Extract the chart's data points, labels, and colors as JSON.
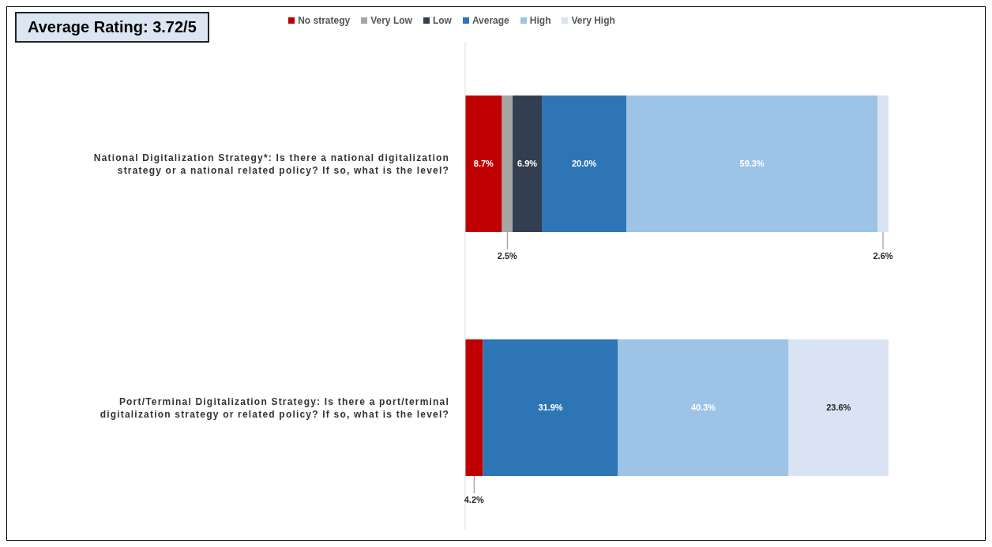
{
  "chart_data": {
    "type": "bar",
    "orientation": "horizontal",
    "stacked": true,
    "title": "Average Rating: 3.72/5",
    "categories": [
      "National Digitalization Strategy*:  Is there a national digitalization strategy or a national related policy? If so, what is the level?",
      "Port/Terminal Digitalization Strategy: Is there a port/terminal digitalization strategy or related policy? If so, what is the level?"
    ],
    "series": [
      {
        "name": "No strategy",
        "color": "#c00000",
        "values": [
          8.7,
          4.2
        ],
        "value_labels": [
          "8.7%",
          "4.2%"
        ]
      },
      {
        "name": "Very Low",
        "color": "#a6a6a6",
        "values": [
          2.5,
          null
        ],
        "value_labels": [
          "2.5%",
          null
        ]
      },
      {
        "name": "Low",
        "color": "#333f50",
        "values": [
          6.9,
          null
        ],
        "value_labels": [
          "6.9%",
          null
        ]
      },
      {
        "name": "Average",
        "color": "#2e75b6",
        "values": [
          20.0,
          31.9
        ],
        "value_labels": [
          "20.0%",
          "31.9%"
        ]
      },
      {
        "name": "High",
        "color": "#9dc3e6",
        "values": [
          59.3,
          40.3
        ],
        "value_labels": [
          "59.3%",
          "40.3%"
        ]
      },
      {
        "name": "Very High",
        "color": "#dae3f3",
        "values": [
          2.6,
          23.6
        ],
        "value_labels": [
          "2.6%",
          "23.6%"
        ]
      }
    ],
    "xlim": [
      0,
      100
    ],
    "tick_labels": "y",
    "legend": "top"
  }
}
